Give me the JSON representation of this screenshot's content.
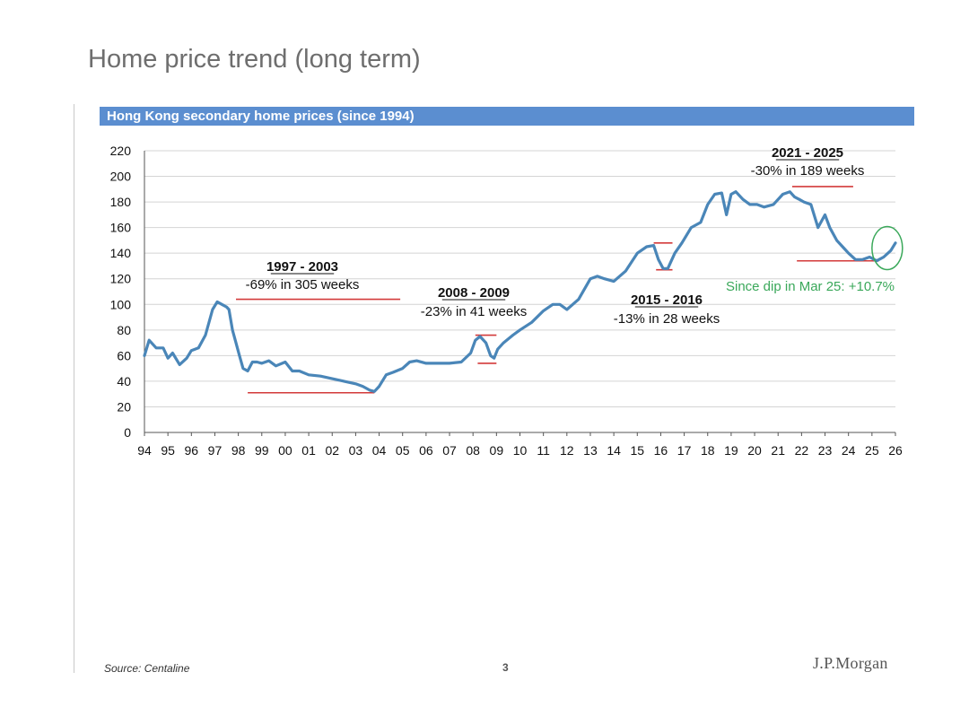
{
  "page": {
    "title": "Home price trend (long term)",
    "source": "Source: Centaline",
    "page_number": "3",
    "brand": "J.P.Morgan"
  },
  "colors": {
    "banner": "#5b8ed0",
    "line": "#4a86b8",
    "grid": "#d4d4d4",
    "drawdown": "#d33a3a",
    "highlight": "#3aa85a",
    "text": "#111111"
  },
  "chart_data": {
    "type": "line",
    "title": "Hong Kong secondary home prices (since 1994)",
    "xlabel": "",
    "ylabel": "",
    "ylim": [
      0,
      220
    ],
    "yticks": [
      0,
      20,
      40,
      60,
      80,
      100,
      120,
      140,
      160,
      180,
      200,
      220
    ],
    "xlim": [
      1994,
      2026
    ],
    "xtick_labels": [
      "94",
      "95",
      "96",
      "97",
      "98",
      "99",
      "00",
      "01",
      "02",
      "03",
      "04",
      "05",
      "06",
      "07",
      "08",
      "09",
      "10",
      "11",
      "12",
      "13",
      "14",
      "15",
      "16",
      "17",
      "18",
      "19",
      "20",
      "21",
      "22",
      "23",
      "24",
      "25",
      "26"
    ],
    "grid": true,
    "series": [
      {
        "name": "Hong Kong secondary home prices",
        "x": [
          1994.0,
          1994.2,
          1994.5,
          1994.8,
          1995.0,
          1995.2,
          1995.5,
          1995.8,
          1996.0,
          1996.3,
          1996.6,
          1996.9,
          1997.1,
          1997.3,
          1997.5,
          1997.6,
          1997.75,
          1997.9,
          1998.05,
          1998.2,
          1998.4,
          1998.6,
          1998.8,
          1999.0,
          1999.3,
          1999.6,
          2000.0,
          2000.3,
          2000.6,
          2001.0,
          2001.5,
          2002.0,
          2002.5,
          2003.0,
          2003.3,
          2003.6,
          2003.8,
          2004.0,
          2004.3,
          2004.6,
          2005.0,
          2005.3,
          2005.6,
          2006.0,
          2006.5,
          2007.0,
          2007.5,
          2007.9,
          2008.1,
          2008.3,
          2008.55,
          2008.75,
          2008.9,
          2009.05,
          2009.3,
          2009.7,
          2010.0,
          2010.5,
          2011.0,
          2011.4,
          2011.7,
          2012.0,
          2012.5,
          2013.0,
          2013.3,
          2013.6,
          2014.0,
          2014.5,
          2015.0,
          2015.4,
          2015.7,
          2015.9,
          2016.1,
          2016.3,
          2016.6,
          2016.9,
          2017.3,
          2017.7,
          2018.0,
          2018.3,
          2018.6,
          2018.8,
          2019.0,
          2019.2,
          2019.5,
          2019.8,
          2020.1,
          2020.4,
          2020.8,
          2021.2,
          2021.5,
          2021.7,
          2021.9,
          2022.1,
          2022.4,
          2022.7,
          2023.0,
          2023.2,
          2023.5,
          2023.8,
          2024.0,
          2024.3,
          2024.6,
          2024.9,
          2025.2,
          2025.5,
          2025.8,
          2026.0
        ],
        "values": [
          60,
          72,
          66,
          66,
          58,
          62,
          53,
          58,
          64,
          66,
          76,
          96,
          102,
          100,
          98,
          96,
          80,
          70,
          60,
          50,
          48,
          55,
          55,
          54,
          56,
          52,
          55,
          48,
          48,
          45,
          44,
          42,
          40,
          38,
          36,
          33,
          32,
          36,
          45,
          47,
          50,
          55,
          56,
          54,
          54,
          54,
          55,
          62,
          72,
          75,
          70,
          60,
          58,
          65,
          70,
          76,
          80,
          86,
          95,
          100,
          100,
          96,
          104,
          120,
          122,
          120,
          118,
          126,
          140,
          145,
          146,
          135,
          128,
          128,
          140,
          148,
          160,
          164,
          178,
          186,
          187,
          170,
          186,
          188,
          182,
          178,
          178,
          176,
          178,
          186,
          188,
          184,
          182,
          180,
          178,
          160,
          170,
          160,
          150,
          144,
          140,
          135,
          135,
          137,
          134,
          137,
          142,
          148
        ]
      }
    ],
    "annotations": [
      {
        "period": "1997 - 2003",
        "change": "-69% in 305 weeks",
        "peak": 104,
        "trough": 31
      },
      {
        "period": "2008 - 2009",
        "change": "-23% in 41 weeks",
        "peak": 76,
        "trough": 54
      },
      {
        "period": "2015 - 2016",
        "change": "-13% in 28 weeks",
        "peak": 148,
        "trough": 127
      },
      {
        "period": "2021 - 2025",
        "change": "-30% in 189 weeks",
        "peak": 192,
        "trough": 134
      },
      {
        "label": "Since dip in Mar 25: +10.7%"
      }
    ]
  }
}
